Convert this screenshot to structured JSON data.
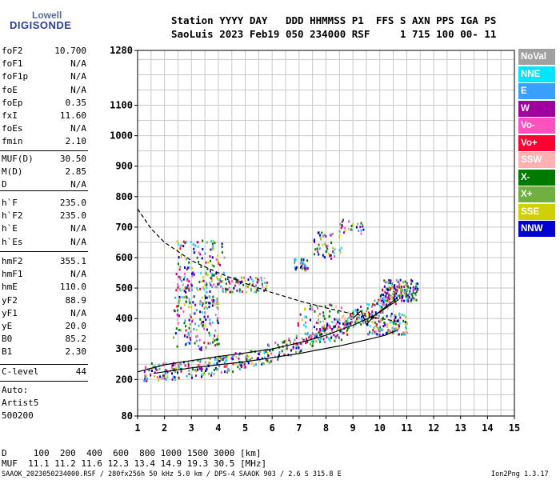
{
  "logo": {
    "line1": "Lowell",
    "line2": "DIGISONDE"
  },
  "header": {
    "line1": "Station YYYY DAY   DDD HHMMSS P1  FFS S AXN PPS IGA PS",
    "line2": "SaoLuis 2023 Feb19 050 234000 RSF     1 715 100 00- 11"
  },
  "params": {
    "group1": [
      {
        "k": "foF2",
        "v": "10.700"
      },
      {
        "k": "foF1",
        "v": "N/A"
      },
      {
        "k": "foF1p",
        "v": "N/A"
      },
      {
        "k": "foE",
        "v": "N/A"
      },
      {
        "k": "foEp",
        "v": "0.35"
      },
      {
        "k": "fxI",
        "v": "11.60"
      },
      {
        "k": "foEs",
        "v": "N/A"
      },
      {
        "k": "fmin",
        "v": "2.10"
      }
    ],
    "group2": [
      {
        "k": "MUF(D)",
        "v": "30.50"
      },
      {
        "k": "M(D)",
        "v": "2.85"
      },
      {
        "k": "D",
        "v": "N/A"
      }
    ],
    "group3": [
      {
        "k": "h`F",
        "v": "235.0"
      },
      {
        "k": "h`F2",
        "v": "235.0"
      },
      {
        "k": "h`E",
        "v": "N/A"
      },
      {
        "k": "h`Es",
        "v": "N/A"
      }
    ],
    "group4": [
      {
        "k": "hmF2",
        "v": "355.1"
      },
      {
        "k": "hmF1",
        "v": "N/A"
      },
      {
        "k": "hmE",
        "v": "110.0"
      },
      {
        "k": "yF2",
        "v": "88.9"
      },
      {
        "k": "yF1",
        "v": "N/A"
      },
      {
        "k": "yE",
        "v": "20.0"
      },
      {
        "k": "B0",
        "v": "85.2"
      },
      {
        "k": "B1",
        "v": "2.30"
      }
    ],
    "clevel": {
      "k": "C-level",
      "v": "44"
    },
    "auto": [
      "Auto:",
      "Artist5",
      "500200"
    ]
  },
  "legend": [
    {
      "label": "NoVal",
      "color": "#a0a0a0"
    },
    {
      "label": "NNE",
      "color": "#00e5ff"
    },
    {
      "label": "E",
      "color": "#3aa0ff"
    },
    {
      "label": "W",
      "color": "#a000a0"
    },
    {
      "label": "Vo-",
      "color": "#ff50c0"
    },
    {
      "label": "Vo+",
      "color": "#ff0030"
    },
    {
      "label": "SSW",
      "color": "#ffb0b0"
    },
    {
      "label": "X-",
      "color": "#007a00"
    },
    {
      "label": "X+",
      "color": "#70b040"
    },
    {
      "label": "SSE",
      "color": "#d0d000"
    },
    {
      "label": "NNW",
      "color": "#0000d0"
    }
  ],
  "footer": {
    "line1": "D     100  200  400  600  800 1000 1500 3000 [km]",
    "line2": "MUF  11.1 11.2 11.6 12.3 13.4 14.9 19.3 30.5 [MHz]",
    "line3_left": "SAAOK_2023050234000.RSF / 280fx256h 50 kHz 5.0 km / DPS-4 SAAOK 903 / 2.6 S 315.8 E",
    "line3_right": "Ion2Png 1.3.17"
  },
  "chart_data": {
    "type": "scatter",
    "xlabel": "",
    "ylabel": "",
    "xlim": [
      1,
      15
    ],
    "ylim": [
      80,
      1280
    ],
    "x_ticks": [
      "1",
      "2",
      "3",
      "4",
      "5",
      "6",
      "7",
      "8",
      "9",
      "10",
      "11",
      "12",
      "13",
      "14",
      "15"
    ],
    "y_ticks": [
      {
        "v": 80,
        "label": "80"
      },
      {
        "v": 200,
        "label": "200"
      },
      {
        "v": 300,
        "label": "300"
      },
      {
        "v": 400,
        "label": "400"
      },
      {
        "v": 500,
        "label": "500"
      },
      {
        "v": 600,
        "label": "600"
      },
      {
        "v": 700,
        "label": "700"
      },
      {
        "v": 800,
        "label": "800"
      },
      {
        "v": 900,
        "label": "900"
      },
      {
        "v": 1000,
        "label": "1000"
      },
      {
        "v": 1100,
        "label": "1100"
      },
      {
        "v": 1280,
        "label": "1280"
      }
    ],
    "grid": true,
    "traces": [
      {
        "name": "O-trace",
        "style": "solid",
        "x": [
          1.0,
          2.0,
          3.0,
          4.0,
          5.0,
          6.0,
          7.0,
          8.0,
          9.0,
          9.8,
          10.4,
          10.7
        ],
        "y": [
          225,
          248,
          262,
          275,
          287,
          300,
          320,
          345,
          378,
          410,
          445,
          462
        ]
      },
      {
        "name": "X-trace",
        "style": "solid",
        "x": [
          1.6,
          3.0,
          5.0,
          7.0,
          8.5,
          9.5,
          10.2,
          10.6
        ],
        "y": [
          220,
          238,
          258,
          285,
          310,
          330,
          345,
          360
        ]
      },
      {
        "name": "cusp",
        "style": "solid",
        "x": [
          9.0,
          9.3,
          9.5,
          9.8,
          10.1,
          10.6
        ],
        "y": [
          400,
          425,
          380,
          410,
          430,
          465
        ]
      },
      {
        "name": "profile",
        "style": "dashed",
        "x": [
          1.0,
          1.5,
          2.0,
          3.0,
          4.0,
          5.0,
          6.0,
          7.0,
          8.0,
          9.0,
          10.0,
          10.7
        ],
        "y": [
          760,
          695,
          650,
          590,
          550,
          515,
          485,
          458,
          435,
          415,
          400,
          390
        ]
      }
    ],
    "echo_clusters": [
      {
        "x": [
          1.2,
          10.8
        ],
        "y": [
          210,
          330
        ],
        "n": 520,
        "curve": true
      },
      {
        "x": [
          2.4,
          5.8
        ],
        "y": [
          490,
          540
        ],
        "n": 150
      },
      {
        "x": [
          2.4,
          4.2
        ],
        "y": [
          540,
          660
        ],
        "n": 90
      },
      {
        "x": [
          2.3,
          4.0
        ],
        "y": [
          300,
          480
        ],
        "n": 160
      },
      {
        "x": [
          6.9,
          8.8
        ],
        "y": [
          330,
          450
        ],
        "n": 80
      },
      {
        "x": [
          6.8,
          7.3
        ],
        "y": [
          560,
          600
        ],
        "n": 35
      },
      {
        "x": [
          7.5,
          8.6
        ],
        "y": [
          600,
          690
        ],
        "n": 55
      },
      {
        "x": [
          8.5,
          9.4
        ],
        "y": [
          680,
          730
        ],
        "n": 25
      },
      {
        "x": [
          10.0,
          11.4
        ],
        "y": [
          460,
          530
        ],
        "n": 140
      },
      {
        "x": [
          9.5,
          11.0
        ],
        "y": [
          350,
          420
        ],
        "n": 110
      }
    ]
  }
}
